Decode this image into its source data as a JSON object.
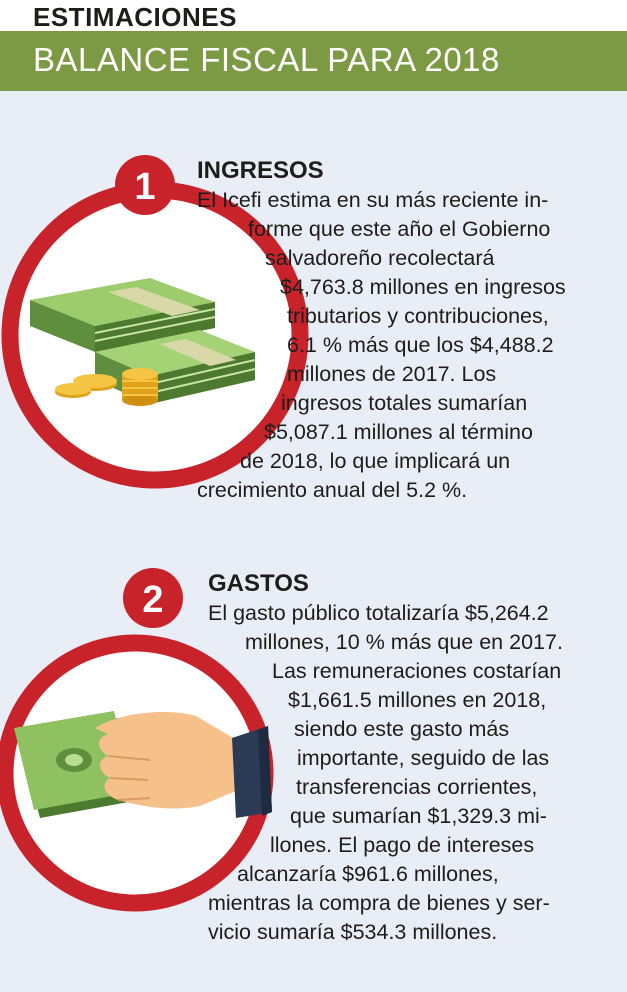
{
  "header": {
    "kicker": "ESTIMACIONES",
    "title": "BALANCE FISCAL PARA 2018"
  },
  "colors": {
    "banner_green": "#7c9a43",
    "ring_red": "#c8222b",
    "background": "#e9edf5"
  },
  "sections": [
    {
      "number": "1",
      "heading": "INGRESOS",
      "icon": "money-stack-coins-icon",
      "lines": [
        "El Icefi estima en su más reciente in-",
        "forme que este año el Gobierno",
        "salvadoreño recolectará",
        "$4,763.8 millones en ingresos",
        "tributarios y contribuciones,",
        "6.1 % más que los $4,488.2",
        "millones de 2017. Los",
        "ingresos totales sumarían",
        "$5,087.1 millones al término",
        "de 2018, lo que implicará un",
        "crecimiento anual del 5.2 %."
      ]
    },
    {
      "number": "2",
      "heading": "GASTOS",
      "icon": "hand-giving-money-icon",
      "lines": [
        "El gasto público totalizaría $5,264.2",
        "millones, 10 % más que en 2017.",
        "Las remuneraciones costarían",
        "$1,661.5 millones en 2018,",
        "siendo este gasto más",
        "importante, seguido de las",
        "transferencias corrientes,",
        "que sumarían $1,329.3 mi-",
        "llones. El pago de intereses",
        "alcanzaría $961.6 millones,",
        "mientras la compra de bienes y ser-",
        "vicio sumaría $534.3 millones."
      ]
    }
  ]
}
